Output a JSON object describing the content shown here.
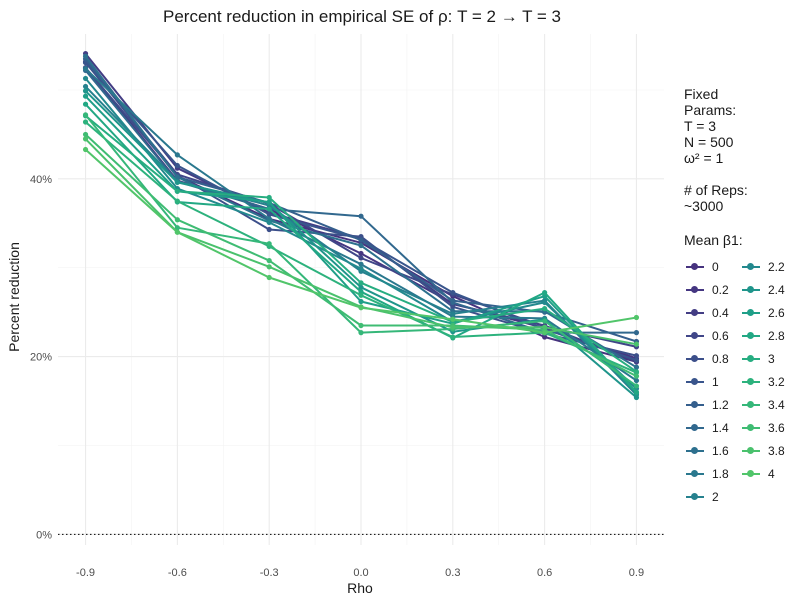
{
  "chart_data": {
    "type": "line",
    "title": "Percent reduction in empirical SE of ρ: T = 2 → T = 3",
    "xlabel": "Rho",
    "ylabel": "Percent reduction",
    "x": [
      -0.9,
      -0.6,
      -0.3,
      0.0,
      0.3,
      0.6,
      0.9
    ],
    "x_tick_labels": [
      "-0.9",
      "-0.6",
      "-0.3",
      "0.0",
      "0.3",
      "0.6",
      "0.9"
    ],
    "y_ticks": [
      0,
      20,
      40
    ],
    "y_tick_labels": [
      "0%",
      "20%",
      "40%"
    ],
    "xlim": [
      -0.99,
      0.99
    ],
    "ylim": [
      -1.2,
      56.3
    ],
    "grid": true,
    "reference_line": {
      "y": 0,
      "style": "dotted"
    },
    "legend_title": "Mean β1:",
    "legend_position": "right",
    "series": [
      {
        "name": "0",
        "color": "#46327e",
        "values": [
          53.2,
          40.3,
          35.5,
          32.8,
          26.8,
          22.2,
          19.4
        ]
      },
      {
        "name": "0.2",
        "color": "#453681",
        "values": [
          52.5,
          39.8,
          36.6,
          31.6,
          26.0,
          23.2,
          19.8
        ]
      },
      {
        "name": "0.4",
        "color": "#433d84",
        "values": [
          54.1,
          41.2,
          36.2,
          33.3,
          25.9,
          23.5,
          19.4
        ]
      },
      {
        "name": "0.6",
        "color": "#404688",
        "values": [
          53.1,
          40.5,
          37.2,
          31.1,
          27.0,
          23.4,
          21.1
        ]
      },
      {
        "name": "0.8",
        "color": "#3c4f8a",
        "values": [
          52.5,
          40.4,
          34.3,
          33.5,
          25.6,
          22.6,
          20.1
        ]
      },
      {
        "name": "1",
        "color": "#39558c",
        "values": [
          53.1,
          41.5,
          36.0,
          33.2,
          27.2,
          23.1,
          19.6
        ]
      },
      {
        "name": "1.2",
        "color": "#355f8d",
        "values": [
          53.5,
          40.2,
          37.3,
          33.1,
          26.3,
          25.0,
          21.7
        ]
      },
      {
        "name": "1.4",
        "color": "#31688e",
        "values": [
          52.2,
          39.7,
          36.6,
          35.8,
          26.1,
          22.7,
          22.7
        ]
      },
      {
        "name": "1.6",
        "color": "#2d708e",
        "values": [
          53.8,
          40.2,
          35.3,
          32.5,
          25.1,
          25.1,
          18.8
        ]
      },
      {
        "name": "1.8",
        "color": "#2a788e",
        "values": [
          52.4,
          42.7,
          35.5,
          30.4,
          24.5,
          24.3,
          17.3
        ]
      },
      {
        "name": "2",
        "color": "#26818e",
        "values": [
          50.4,
          39.7,
          37.0,
          29.6,
          24.8,
          26.3,
          15.7
        ]
      },
      {
        "name": "2.2",
        "color": "#23898e",
        "values": [
          51.3,
          38.9,
          35.1,
          29.9,
          23.9,
          26.1,
          16.4
        ]
      },
      {
        "name": "2.4",
        "color": "#1f958b",
        "values": [
          49.9,
          39.6,
          37.3,
          27.8,
          22.8,
          24.2,
          15.4
        ]
      },
      {
        "name": "2.6",
        "color": "#1f9f88",
        "values": [
          49.3,
          38.6,
          37.4,
          26.2,
          23.7,
          26.8,
          15.9
        ]
      },
      {
        "name": "2.8",
        "color": "#22a884",
        "values": [
          48.4,
          37.4,
          36.6,
          27.3,
          22.1,
          27.2,
          16.0
        ]
      },
      {
        "name": "3",
        "color": "#27ad81",
        "values": [
          47.1,
          38.6,
          37.9,
          28.3,
          23.9,
          25.4,
          18.3
        ]
      },
      {
        "name": "3.2",
        "color": "#2db27d",
        "values": [
          46.4,
          37.5,
          32.4,
          26.9,
          22.2,
          22.7,
          18.2
        ]
      },
      {
        "name": "3.4",
        "color": "#35b779",
        "values": [
          47.2,
          34.5,
          32.7,
          22.7,
          23.1,
          24.0,
          16.7
        ]
      },
      {
        "name": "3.6",
        "color": "#3fbc73",
        "values": [
          45.0,
          35.4,
          30.8,
          23.5,
          23.5,
          23.0,
          17.8
        ]
      },
      {
        "name": "3.8",
        "color": "#4ac16d",
        "values": [
          44.5,
          34.0,
          30.1,
          25.6,
          23.3,
          23.3,
          21.4
        ]
      },
      {
        "name": "4",
        "color": "#51c56a",
        "values": [
          43.3,
          34.0,
          28.9,
          25.5,
          24.2,
          22.7,
          24.4
        ]
      }
    ]
  },
  "side_panel": {
    "params_lines": [
      "Fixed",
      "Params:",
      "T = 3",
      "N = 500",
      "ω² = 1"
    ],
    "reps_lines": [
      "# of Reps:",
      "~3000"
    ]
  },
  "colors": {
    "grid_major": "#ebebeb",
    "grid_minor": "#f3f3f3",
    "axis_text": "#4d4d4d",
    "title_text": "#1a1a1a"
  }
}
